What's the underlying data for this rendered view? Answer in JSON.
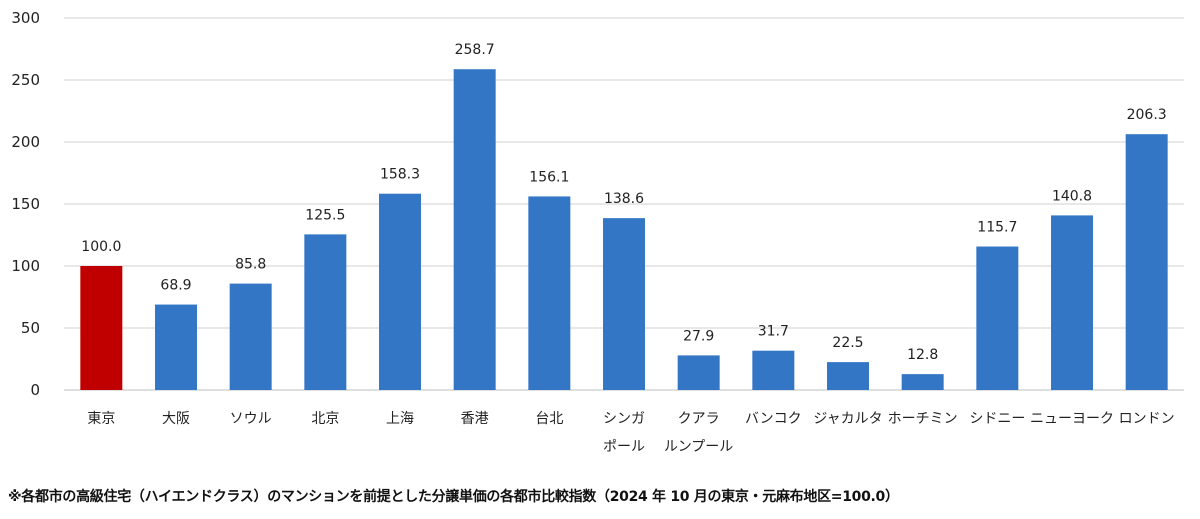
{
  "chart_data": {
    "type": "bar",
    "categories": [
      [
        "東京"
      ],
      [
        "大阪"
      ],
      [
        "ソウル"
      ],
      [
        "北京"
      ],
      [
        "上海"
      ],
      [
        "香港"
      ],
      [
        "台北"
      ],
      [
        "シンガ",
        "ポール"
      ],
      [
        "クアラ",
        "ルンプール"
      ],
      [
        "バンコク"
      ],
      [
        "ジャカルタ"
      ],
      [
        "ホーチミン"
      ],
      [
        "シドニー"
      ],
      [
        "ニューヨーク"
      ],
      [
        "ロンドン"
      ]
    ],
    "values": [
      100.0,
      68.9,
      85.8,
      125.5,
      158.3,
      258.7,
      156.1,
      138.6,
      27.9,
      31.7,
      22.5,
      12.8,
      115.7,
      140.8,
      206.3
    ],
    "data_labels": [
      "100.0",
      "68.9",
      "85.8",
      "125.5",
      "158.3",
      "258.7",
      "156.1",
      "138.6",
      "27.9",
      "31.7",
      "22.5",
      "12.8",
      "115.7",
      "140.8",
      "206.3"
    ],
    "highlight_index": 0,
    "colors": {
      "highlight": "#C00000",
      "bar": "#3476C6",
      "grid": "#D0D0D0"
    },
    "ylim": [
      0,
      300
    ],
    "yticks": [
      0,
      50,
      100,
      150,
      200,
      250,
      300
    ],
    "grid": true,
    "legend": "none",
    "title": "",
    "xlabel": "",
    "ylabel": ""
  },
  "footnote": "※各都市の高級住宅（ハイエンドクラス）のマンションを前提とした分譲単価の各都市比較指数（2024 年 10 月の東京・元麻布地区=100.0）"
}
